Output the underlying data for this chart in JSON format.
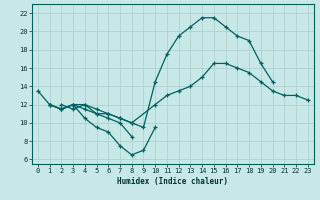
{
  "xlabel": "Humidex (Indice chaleur)",
  "background_color": "#c8e8e8",
  "grid_color": "#a8cccc",
  "line_color": "#006060",
  "xlim": [
    -0.5,
    23.5
  ],
  "ylim": [
    5.5,
    23.0
  ],
  "yticks": [
    6,
    8,
    10,
    12,
    14,
    16,
    18,
    20,
    22
  ],
  "xticks": [
    0,
    1,
    2,
    3,
    4,
    5,
    6,
    7,
    8,
    9,
    10,
    11,
    12,
    13,
    14,
    15,
    16,
    17,
    18,
    19,
    20,
    21,
    22,
    23
  ],
  "series": [
    {
      "x": [
        0,
        1,
        2,
        3,
        4,
        5,
        6,
        7,
        8,
        9,
        10
      ],
      "y": [
        13.5,
        12.0,
        11.5,
        12.0,
        10.5,
        9.5,
        9.0,
        7.5,
        6.5,
        7.0,
        9.5
      ]
    },
    {
      "x": [
        2,
        3,
        4,
        5,
        6,
        7,
        8
      ],
      "y": [
        12.0,
        11.5,
        12.0,
        11.0,
        10.5,
        10.0,
        8.5
      ]
    },
    {
      "x": [
        1,
        2,
        3,
        4,
        5,
        6,
        7,
        8,
        9,
        10,
        11,
        12,
        13,
        14,
        15,
        16,
        17,
        18,
        19,
        20
      ],
      "y": [
        12.0,
        11.5,
        12.0,
        12.0,
        11.5,
        11.0,
        10.5,
        10.0,
        9.5,
        14.5,
        17.5,
        19.5,
        20.5,
        21.5,
        21.5,
        20.5,
        19.5,
        19.0,
        16.5,
        14.5
      ]
    },
    {
      "x": [
        1,
        2,
        3,
        4,
        5,
        6,
        7,
        8,
        10,
        11,
        12,
        13,
        14,
        15,
        16,
        17,
        18,
        19,
        20,
        21,
        22,
        23
      ],
      "y": [
        12.0,
        11.5,
        12.0,
        11.5,
        11.0,
        11.0,
        10.5,
        10.0,
        12.0,
        13.0,
        13.5,
        14.0,
        15.0,
        16.5,
        16.5,
        16.0,
        15.5,
        14.5,
        13.5,
        13.0,
        13.0,
        12.5
      ]
    }
  ]
}
